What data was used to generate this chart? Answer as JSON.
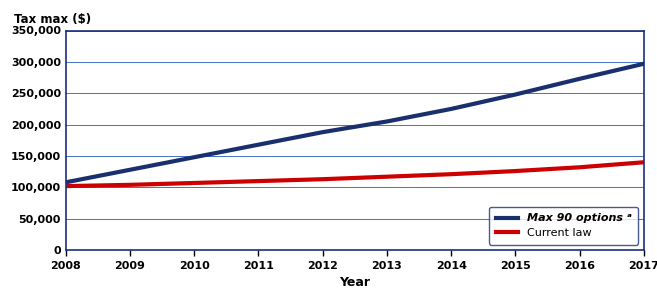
{
  "title": "",
  "xlabel": "Year",
  "ylabel": "Tax max ($)",
  "years": [
    2008,
    2009,
    2010,
    2011,
    2012,
    2013,
    2014,
    2015,
    2016,
    2017
  ],
  "max90_values": [
    108000,
    128000,
    148000,
    168000,
    188000,
    205000,
    225000,
    248000,
    273000,
    297000
  ],
  "current_law_values": [
    102000,
    104000,
    107000,
    110000,
    113000,
    117000,
    121000,
    126000,
    132000,
    140000
  ],
  "max90_color": "#1a2f6e",
  "current_law_color": "#cc0000",
  "ylim": [
    0,
    350000
  ],
  "yticks": [
    0,
    50000,
    100000,
    150000,
    200000,
    250000,
    300000,
    350000
  ],
  "xlim": [
    2008,
    2017
  ],
  "xticks": [
    2008,
    2009,
    2010,
    2011,
    2012,
    2013,
    2014,
    2015,
    2016,
    2017
  ],
  "grid_color": "#4472c4",
  "line_width": 3.0,
  "legend_label_max90": "Max 90 options ᵃ",
  "legend_label_current": "Current law",
  "bg_color": "#ffffff",
  "plot_bg_color": "#ffffff",
  "border_color": "#1a3080"
}
